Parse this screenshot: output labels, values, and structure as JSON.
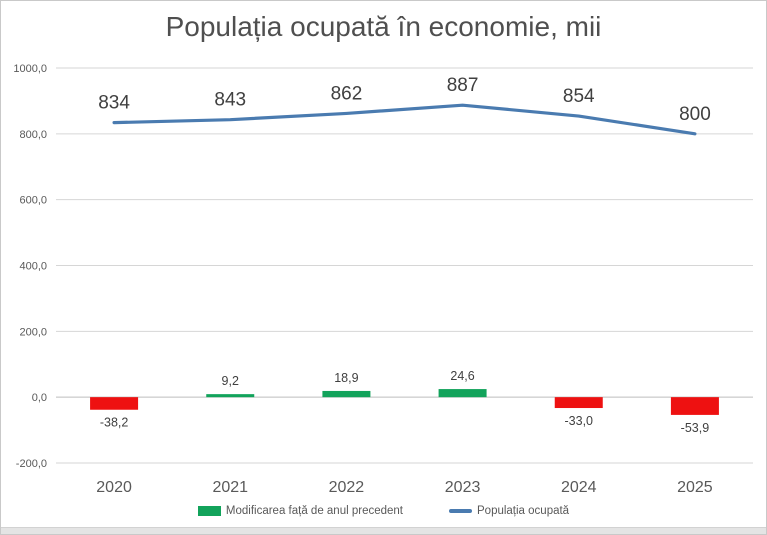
{
  "window": {
    "background": "#ffffff",
    "border_color": "#c9c9c9",
    "bottom_strip_color": "#e4e4e4"
  },
  "chart_data": {
    "type": "combo",
    "title": "Populația ocupată în economie, mii",
    "categories": [
      "2020",
      "2021",
      "2022",
      "2023",
      "2024",
      "2025"
    ],
    "series": [
      {
        "name": "Modificarea față de anul precedent",
        "type": "bar",
        "values": [
          -38.2,
          9.2,
          18.9,
          24.6,
          -33.0,
          -53.9
        ],
        "labels": [
          "-38,2",
          "9,2",
          "18,9",
          "24,6",
          "-33,0",
          "-53,9"
        ],
        "color_positive": "#12a35b",
        "color_negative": "#ee1111"
      },
      {
        "name": "Populația ocupată",
        "type": "line",
        "values": [
          834,
          843,
          862,
          887,
          854,
          800
        ],
        "labels": [
          "834",
          "843",
          "862",
          "887",
          "854",
          "800"
        ],
        "color": "#4a7bb0"
      }
    ],
    "y_axis": {
      "min": -200,
      "max": 1000,
      "tick_step": 200,
      "tick_values": [
        1000,
        800,
        600,
        400,
        200,
        0,
        -200
      ],
      "tick_labels": [
        "1000,0",
        "800,0",
        "600,0",
        "400,0",
        "200,0",
        "0,0",
        "-200,0"
      ]
    },
    "grid": true,
    "gridline_color": "#d6d6d6",
    "zero_line_color": "#bdbdbd",
    "legend_position": "bottom",
    "axis_text_color": "#595959",
    "data_label_color": "#404040"
  }
}
